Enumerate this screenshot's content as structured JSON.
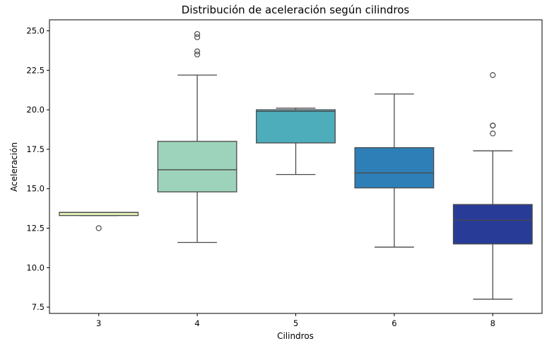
{
  "chart_data": {
    "type": "box",
    "title": "Distribución de aceleración según cilindros",
    "xlabel": "Cilindros",
    "ylabel": "Aceleración",
    "ylim": [
      7.1,
      25.7
    ],
    "yticks": [
      "7.5",
      "10.0",
      "12.5",
      "15.0",
      "17.5",
      "20.0",
      "22.5",
      "25.0"
    ],
    "grid": false,
    "categories": [
      "3",
      "4",
      "5",
      "6",
      "8"
    ],
    "boxes": [
      {
        "category": "3",
        "whisker_low": 13.3,
        "q1": 13.3,
        "median": 13.5,
        "q3": 13.5,
        "whisker_high": 13.5,
        "outliers": [
          12.5
        ],
        "color": "#e1efb5"
      },
      {
        "category": "4",
        "whisker_low": 11.6,
        "q1": 14.8,
        "median": 16.2,
        "q3": 18.0,
        "whisker_high": 22.2,
        "outliers": [
          23.5,
          23.7,
          24.6,
          24.8
        ],
        "color": "#9dd3ba"
      },
      {
        "category": "5",
        "whisker_low": 15.9,
        "q1": 17.9,
        "median": 19.9,
        "q3": 20.0,
        "whisker_high": 20.1,
        "outliers": [],
        "color": "#4eadbb"
      },
      {
        "category": "6",
        "whisker_low": 11.3,
        "q1": 15.05,
        "median": 16.0,
        "q3": 17.6,
        "whisker_high": 21.0,
        "outliers": [],
        "color": "#2e7fb8"
      },
      {
        "category": "8",
        "whisker_low": 8.0,
        "q1": 11.5,
        "median": 13.0,
        "q3": 14.0,
        "whisker_high": 17.4,
        "outliers": [
          18.5,
          19.0,
          19.0,
          22.2
        ],
        "color": "#283c97"
      }
    ]
  }
}
